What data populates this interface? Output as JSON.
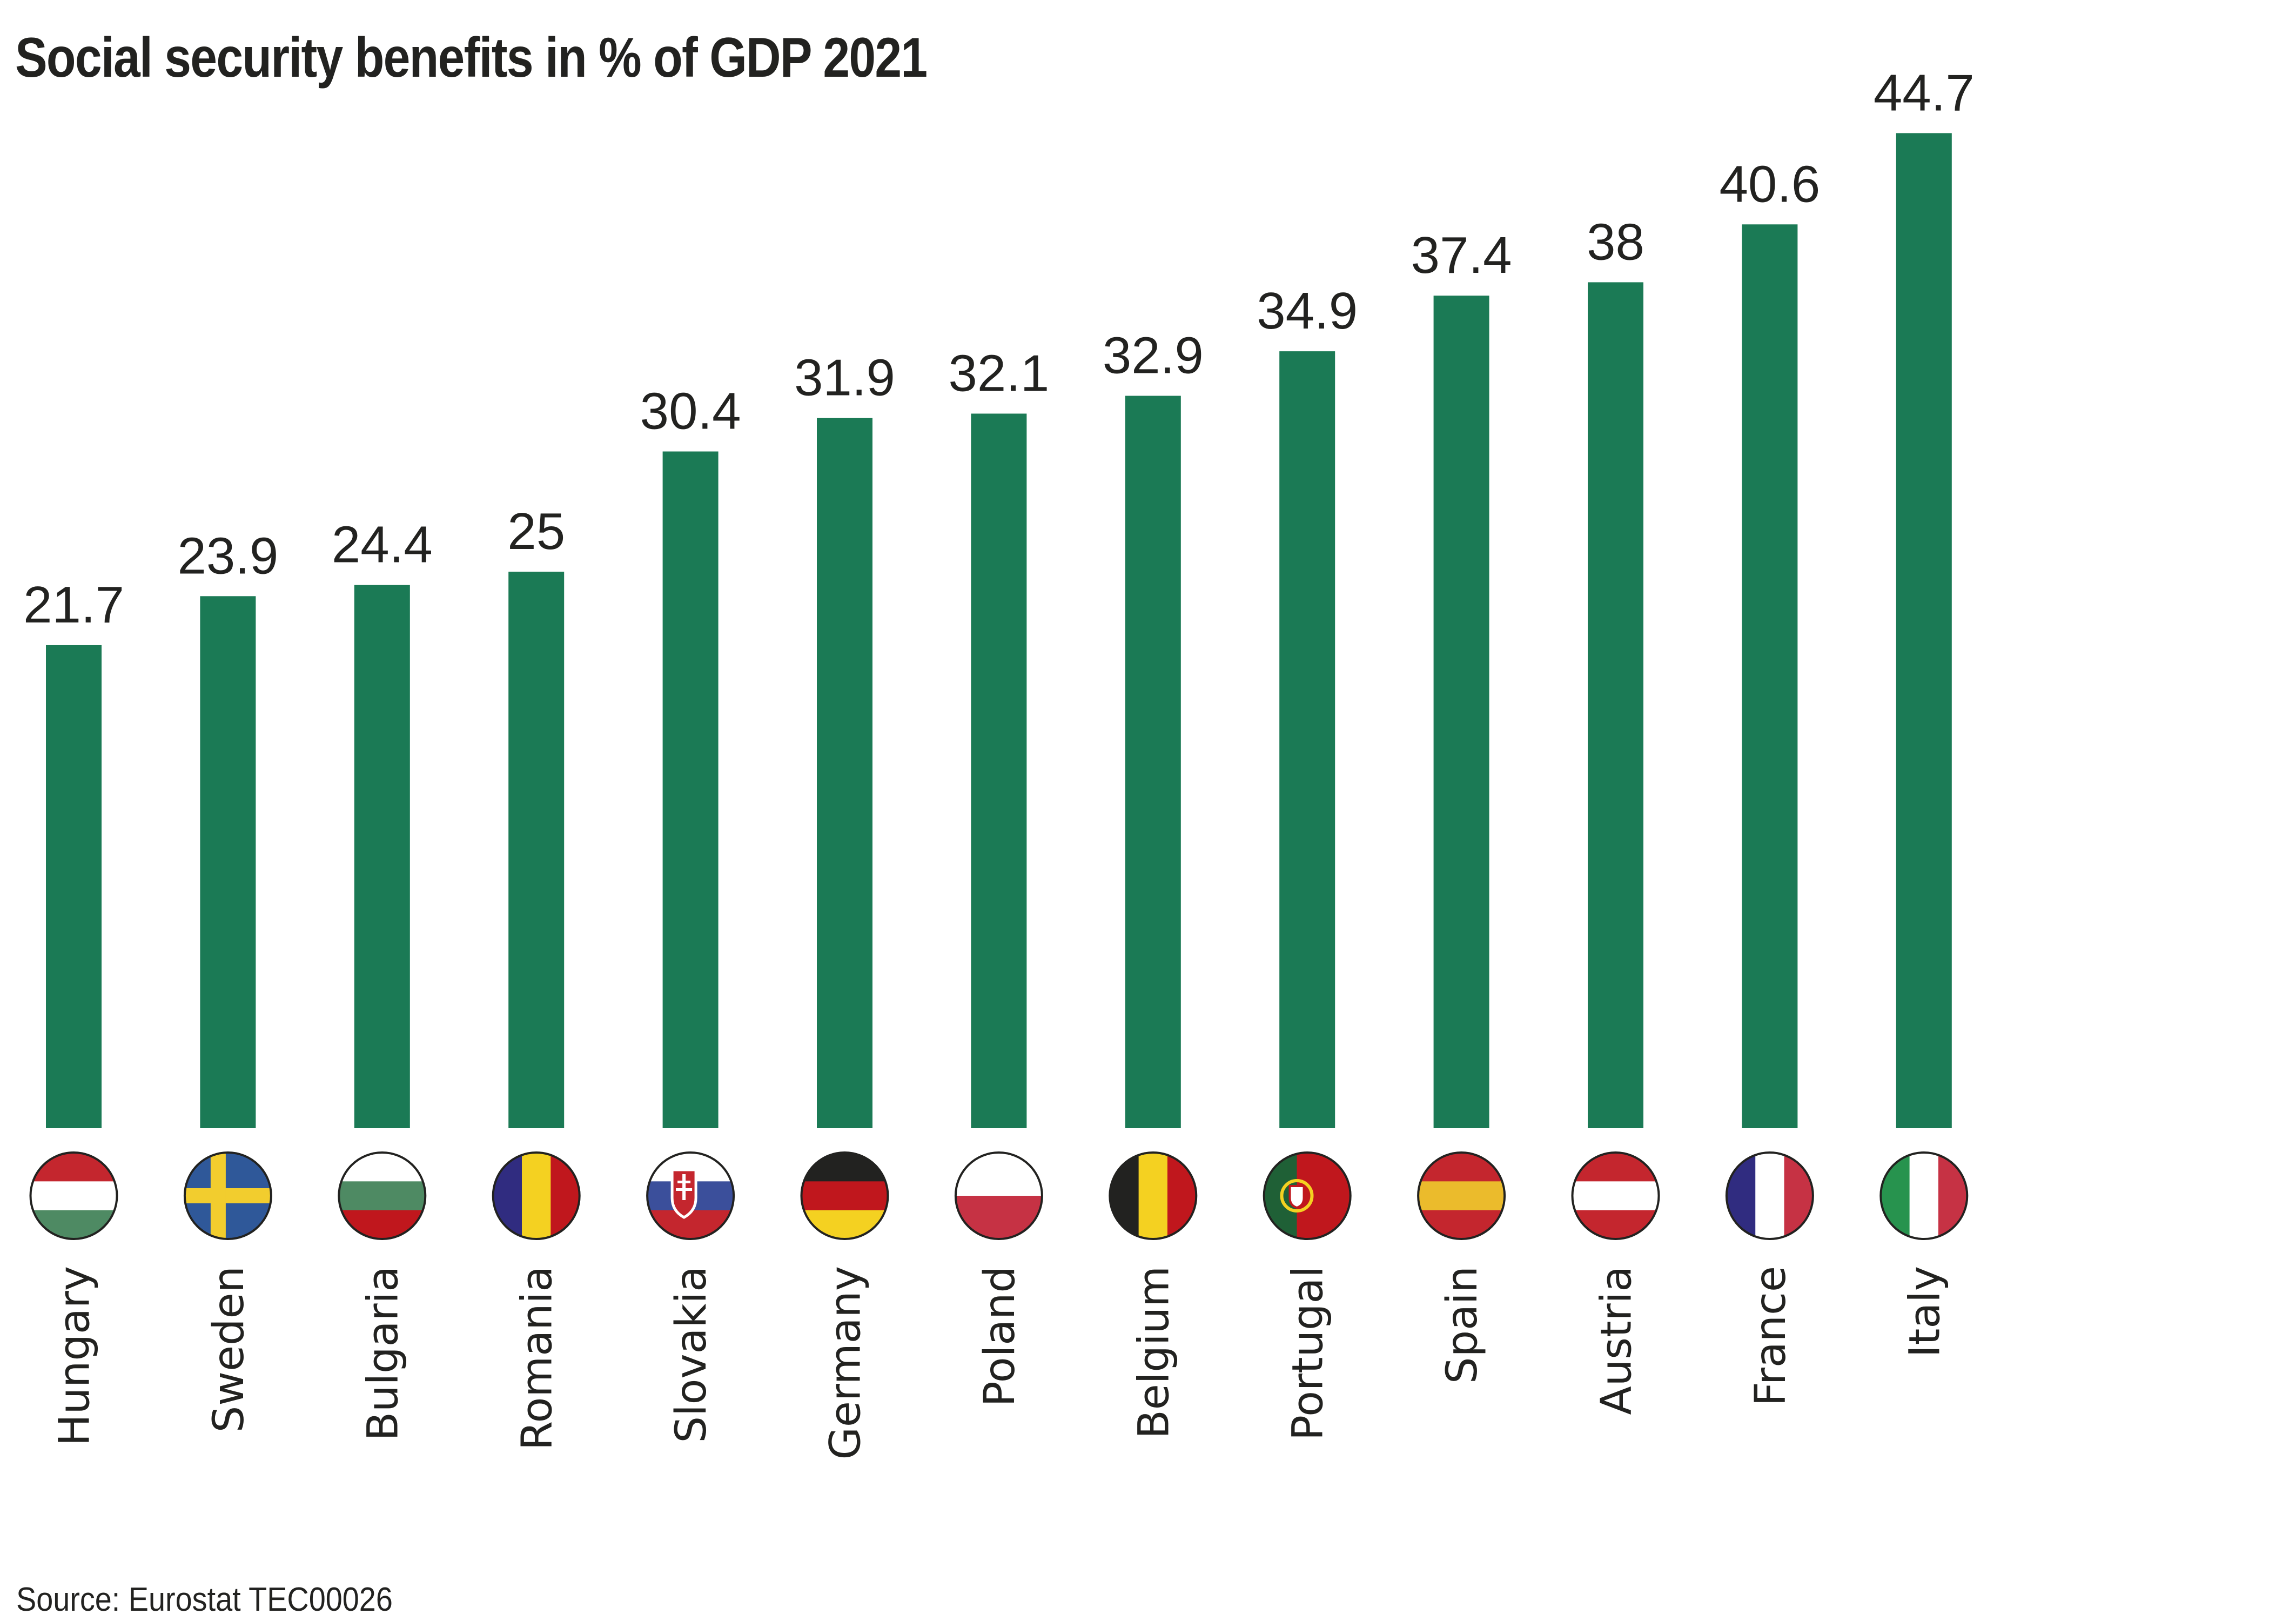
{
  "title": "Social security benefits in % of GDP 2021",
  "source": "Source: Eurostat TEC00026",
  "colors": {
    "bar": "#1b7a55",
    "text": "#222220"
  },
  "chart_data": {
    "type": "bar",
    "title": "Social security benefits in % of GDP 2021",
    "xlabel": "",
    "ylabel": "",
    "ylim": [
      0,
      44.7
    ],
    "grid": false,
    "legend": "none",
    "categories": [
      "Hungary",
      "Sweden",
      "Bulgaria",
      "Romania",
      "Slovakia",
      "Germany",
      "Poland",
      "Belgium",
      "Portugal",
      "Spain",
      "Austria",
      "France",
      "Italy"
    ],
    "values": [
      21.7,
      23.9,
      24.4,
      25,
      30.4,
      31.9,
      32.1,
      32.9,
      34.9,
      37.4,
      38,
      40.6,
      44.7
    ],
    "data_labels": [
      "21.7",
      "23.9",
      "24.4",
      "25",
      "30.4",
      "31.9",
      "32.1",
      "32.9",
      "34.9",
      "37.4",
      "38",
      "40.6",
      "44.7"
    ],
    "flags": [
      {
        "country": "Hungary",
        "icon": "hungary-flag-icon",
        "layout": "h",
        "stripes": [
          "#c4262e",
          "#ffffff",
          "#4e8a63"
        ]
      },
      {
        "country": "Sweden",
        "icon": "sweden-flag-icon",
        "layout": "cross",
        "stripes": [
          "#2f5899",
          "#f2cd2e"
        ]
      },
      {
        "country": "Bulgaria",
        "icon": "bulgaria-flag-icon",
        "layout": "h",
        "stripes": [
          "#ffffff",
          "#4e8a63",
          "#c0171d"
        ]
      },
      {
        "country": "Romania",
        "icon": "romania-flag-icon",
        "layout": "v",
        "stripes": [
          "#302c80",
          "#f4d121",
          "#c0171d"
        ]
      },
      {
        "country": "Slovakia",
        "icon": "slovakia-flag-icon",
        "layout": "h",
        "stripes": [
          "#ffffff",
          "#3b4f9b",
          "#c4262e"
        ],
        "emblem": "shield"
      },
      {
        "country": "Germany",
        "icon": "germany-flag-icon",
        "layout": "h",
        "stripes": [
          "#222220",
          "#c0171d",
          "#f4d121"
        ]
      },
      {
        "country": "Poland",
        "icon": "poland-flag-icon",
        "layout": "h2",
        "stripes": [
          "#ffffff",
          "#c63244"
        ]
      },
      {
        "country": "Belgium",
        "icon": "belgium-flag-icon",
        "layout": "v",
        "stripes": [
          "#222220",
          "#f4d121",
          "#c0171d"
        ]
      },
      {
        "country": "Portugal",
        "icon": "portugal-flag-icon",
        "layout": "pt",
        "stripes": [
          "#1f6036",
          "#c0171d"
        ],
        "emblem": "armillary"
      },
      {
        "country": "Spain",
        "icon": "spain-flag-icon",
        "layout": "h",
        "stripes": [
          "#c4262e",
          "#ebbb2c",
          "#c4262e"
        ]
      },
      {
        "country": "Austria",
        "icon": "austria-flag-icon",
        "layout": "h",
        "stripes": [
          "#c4262e",
          "#ffffff",
          "#c4262e"
        ]
      },
      {
        "country": "France",
        "icon": "france-flag-icon",
        "layout": "v",
        "stripes": [
          "#302c80",
          "#ffffff",
          "#c63244"
        ]
      },
      {
        "country": "Italy",
        "icon": "italy-flag-icon",
        "layout": "v",
        "stripes": [
          "#27934e",
          "#ffffff",
          "#c63244"
        ]
      }
    ]
  }
}
